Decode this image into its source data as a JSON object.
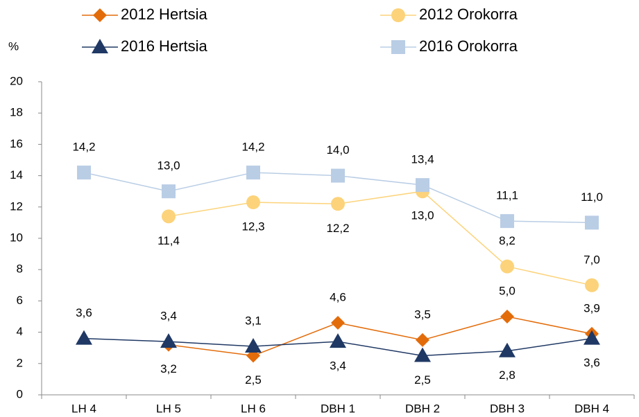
{
  "chart_data": {
    "type": "line",
    "y_label": "%",
    "categories": [
      "LH 4",
      "LH 5",
      "LH 6",
      "DBH 1",
      "DBH 2",
      "DBH 3",
      "DBH 4"
    ],
    "series": [
      {
        "name": "2012 Hertsia",
        "color": "#e36c0a",
        "marker": "diamond",
        "values": [
          null,
          3.2,
          2.5,
          4.6,
          3.5,
          5.0,
          3.9
        ],
        "value_labels": [
          null,
          "3,2",
          "2,5",
          "4,6",
          "3,5",
          "5,0",
          "3,9"
        ]
      },
      {
        "name": "2012 Orokorra",
        "color": "#fcd37a",
        "marker": "circle",
        "values": [
          null,
          11.4,
          12.3,
          12.2,
          13.0,
          8.2,
          7.0
        ],
        "value_labels": [
          null,
          "11,4",
          "12,3",
          "12,2",
          "13,0",
          "8,2",
          "7,0"
        ]
      },
      {
        "name": "2016 Hertsia",
        "color": "#1f3864",
        "marker": "triangle",
        "values": [
          3.6,
          3.4,
          3.1,
          3.4,
          2.5,
          2.8,
          3.6
        ],
        "value_labels": [
          "3,6",
          "3,4",
          "3,1",
          "3,4",
          "2,5",
          "2,8",
          "3,6"
        ]
      },
      {
        "name": "2016 Orokorra",
        "color": "#b9cde5",
        "marker": "square",
        "values": [
          14.2,
          13.0,
          14.2,
          14.0,
          13.4,
          11.1,
          11.0
        ],
        "value_labels": [
          "14,2",
          "13,0",
          "14,2",
          "14,0",
          "13,4",
          "11,1",
          "11,0"
        ]
      }
    ],
    "ylim": [
      0,
      20
    ],
    "yticks": [
      0,
      2,
      4,
      6,
      8,
      10,
      12,
      14,
      16,
      18,
      20
    ]
  }
}
